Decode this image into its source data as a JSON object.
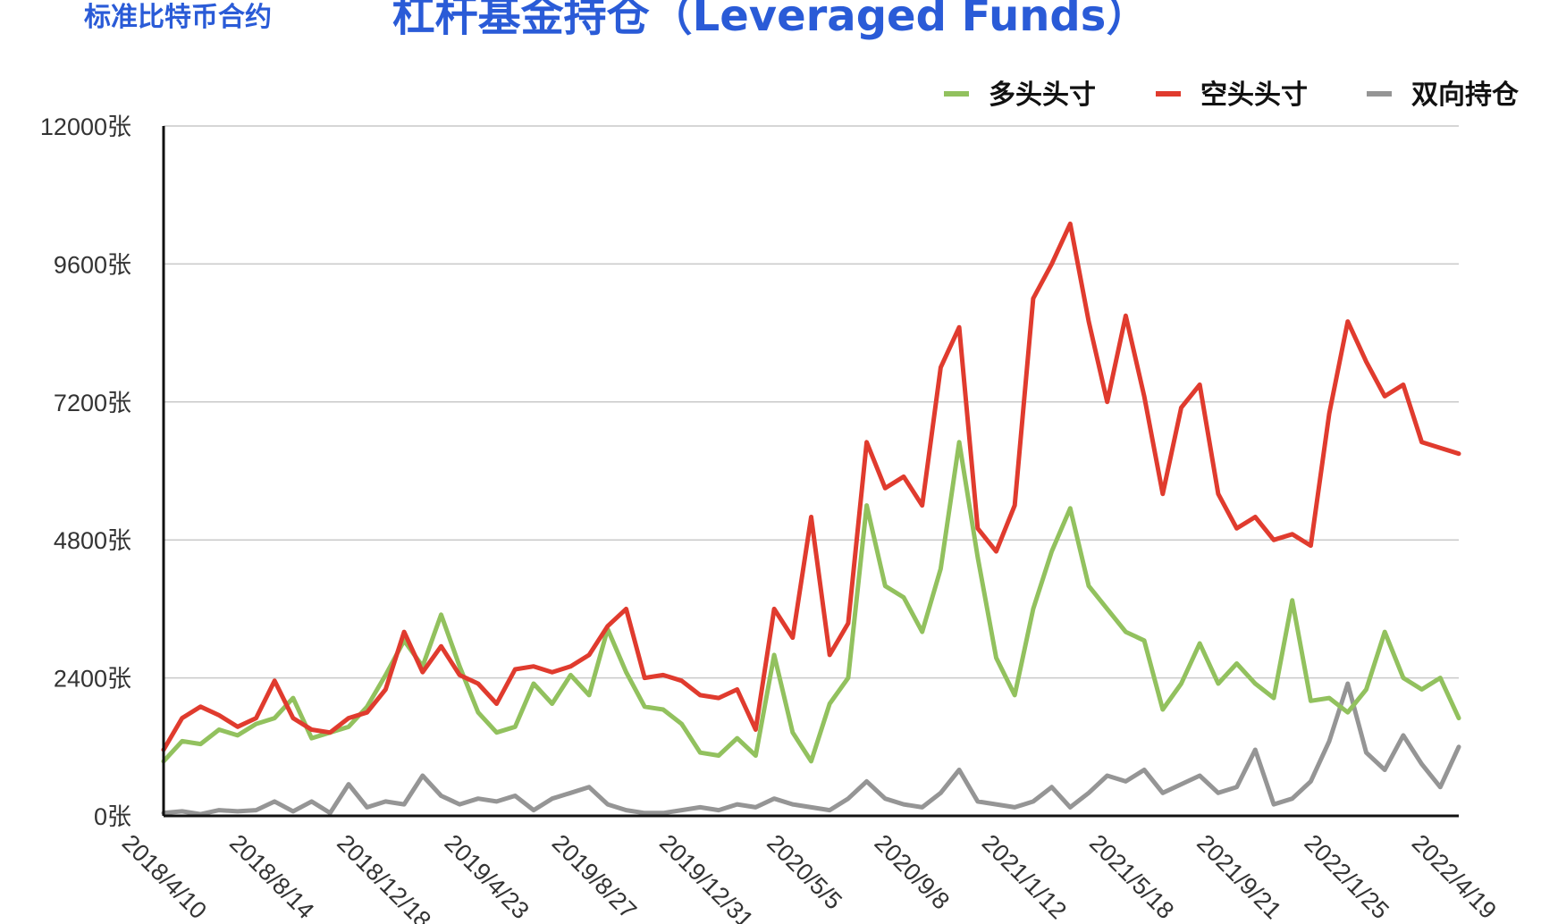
{
  "header": {
    "subtitle": "标准比特币合约",
    "title": "杠杆基金持仓（Leveraged Funds）"
  },
  "chart_data": {
    "type": "line",
    "title": "杠杆基金持仓（Leveraged Funds）",
    "xlabel": "",
    "ylabel": "",
    "ylim": [
      0,
      12000
    ],
    "y_ticks": [
      0,
      2400,
      4800,
      7200,
      9600,
      12000
    ],
    "y_tick_labels": [
      "0张",
      "2400张",
      "4800张",
      "7200张",
      "9600张",
      "12000张"
    ],
    "x_tick_labels": [
      "2018/4/10",
      "2018/8/14",
      "2018/12/18",
      "2019/4/23",
      "2019/8/27",
      "2019/12/31",
      "2020/5/5",
      "2020/9/8",
      "2021/1/12",
      "2021/5/18",
      "2021/9/21",
      "2022/1/25",
      "2022/4/19"
    ],
    "grid": true,
    "legend_position": "top-right",
    "x": [
      "2018/4/10",
      "2018/5/1",
      "2018/5/22",
      "2018/6/12",
      "2018/7/3",
      "2018/7/24",
      "2018/8/14",
      "2018/9/4",
      "2018/9/25",
      "2018/10/16",
      "2018/11/6",
      "2018/11/27",
      "2018/12/18",
      "2019/1/8",
      "2019/1/29",
      "2019/2/19",
      "2019/3/12",
      "2019/4/2",
      "2019/4/23",
      "2019/5/14",
      "2019/6/4",
      "2019/6/25",
      "2019/7/16",
      "2019/8/6",
      "2019/8/27",
      "2019/9/17",
      "2019/10/8",
      "2019/10/29",
      "2019/11/19",
      "2019/12/10",
      "2019/12/31",
      "2020/1/21",
      "2020/2/11",
      "2020/3/3",
      "2020/3/24",
      "2020/4/14",
      "2020/5/5",
      "2020/5/26",
      "2020/6/16",
      "2020/7/7",
      "2020/7/28",
      "2020/8/18",
      "2020/9/8",
      "2020/9/29",
      "2020/10/20",
      "2020/11/10",
      "2020/12/1",
      "2020/12/22",
      "2021/1/12",
      "2021/2/2",
      "2021/2/23",
      "2021/3/16",
      "2021/4/6",
      "2021/4/27",
      "2021/5/18",
      "2021/6/8",
      "2021/6/29",
      "2021/7/20",
      "2021/8/10",
      "2021/8/31",
      "2021/9/21",
      "2021/10/12",
      "2021/11/2",
      "2021/11/23",
      "2021/12/14",
      "2022/1/4",
      "2022/1/25",
      "2022/2/15",
      "2022/3/8",
      "2022/3/29",
      "2022/4/19"
    ],
    "series": [
      {
        "name": "多头头寸",
        "color": "#92c15e",
        "values": [
          950,
          1300,
          1250,
          1500,
          1400,
          1600,
          1700,
          2050,
          1350,
          1450,
          1550,
          1900,
          2450,
          3050,
          2600,
          3500,
          2600,
          1800,
          1450,
          1550,
          2300,
          1950,
          2450,
          2100,
          3250,
          2500,
          1900,
          1850,
          1600,
          1100,
          1050,
          1350,
          1050,
          2800,
          1450,
          950,
          1950,
          2400,
          5400,
          4000,
          3800,
          3200,
          4300,
          6500,
          4500,
          2750,
          2100,
          3600,
          4600,
          5350,
          4000,
          3600,
          3200,
          3050,
          1850,
          2300,
          3000,
          2300,
          2650,
          2300,
          2050,
          3750,
          2000,
          2050,
          1800,
          2200,
          3200,
          2400,
          2200,
          2400,
          1700
        ]
      },
      {
        "name": "空头头寸",
        "color": "#e03b2e",
        "values": [
          1150,
          1700,
          1900,
          1750,
          1550,
          1700,
          2350,
          1700,
          1500,
          1450,
          1700,
          1800,
          2200,
          3200,
          2500,
          2950,
          2450,
          2300,
          1950,
          2550,
          2600,
          2500,
          2600,
          2800,
          3300,
          3600,
          2400,
          2450,
          2350,
          2100,
          2050,
          2200,
          1500,
          3600,
          3100,
          5200,
          2800,
          3350,
          6500,
          5700,
          5900,
          5400,
          7800,
          8500,
          5000,
          4600,
          5400,
          9000,
          9600,
          10300,
          8600,
          7200,
          8700,
          7300,
          5600,
          7100,
          7500,
          5600,
          5000,
          5200,
          4800,
          4900,
          4700,
          7000,
          8600,
          7900,
          7300,
          7500,
          6500,
          6400,
          6300
        ]
      },
      {
        "name": "双向持仓",
        "color": "#959595",
        "values": [
          50,
          80,
          30,
          100,
          80,
          100,
          250,
          80,
          250,
          50,
          550,
          150,
          250,
          200,
          700,
          350,
          200,
          300,
          250,
          350,
          100,
          300,
          400,
          500,
          200,
          100,
          50,
          50,
          100,
          150,
          100,
          200,
          150,
          300,
          200,
          150,
          100,
          300,
          600,
          300,
          200,
          150,
          400,
          800,
          250,
          200,
          150,
          250,
          500,
          150,
          400,
          700,
          600,
          800,
          400,
          550,
          700,
          400,
          500,
          1150,
          200,
          300,
          600,
          1300,
          2300,
          1100,
          800,
          1400,
          900,
          500,
          1200
        ]
      }
    ]
  }
}
